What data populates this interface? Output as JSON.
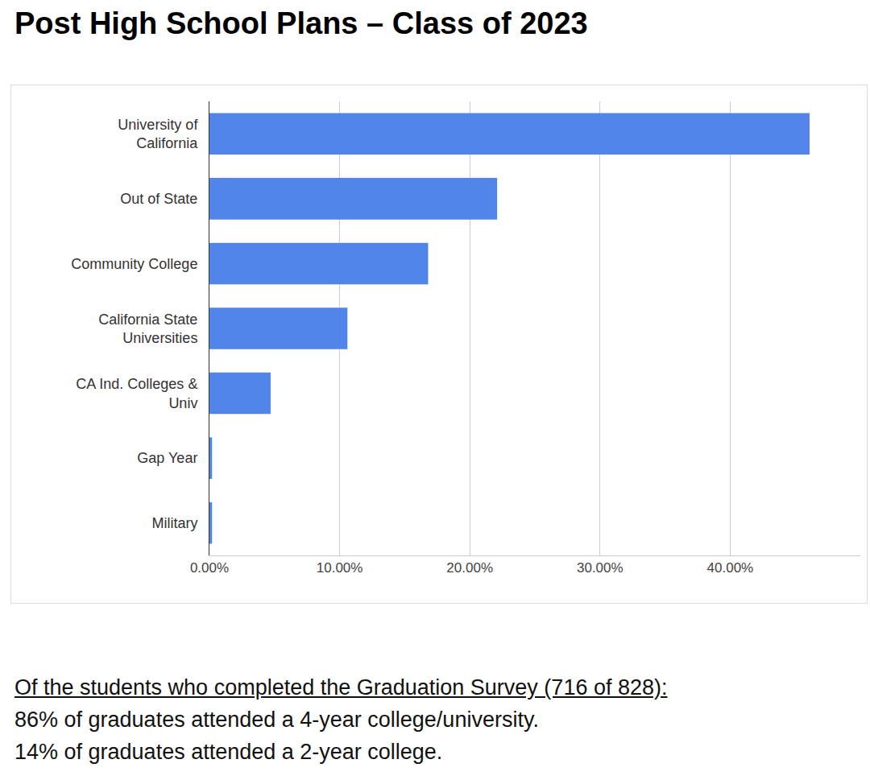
{
  "chart_data": {
    "type": "bar",
    "title": "Post High School Plans – Class of 2023",
    "orientation": "horizontal",
    "categories": [
      "University of California",
      "Out of State",
      "Community College",
      "California State Universities",
      "CA Ind. Colleges & Univ",
      "Gap Year",
      "Military"
    ],
    "values": [
      46.1,
      22.1,
      16.8,
      10.6,
      4.7,
      0.2,
      0.2
    ],
    "color": "#5285ea",
    "xlim": [
      0,
      50
    ],
    "xticks": [
      {
        "value": 0,
        "label": "0.00%"
      },
      {
        "value": 10,
        "label": "10.00%"
      },
      {
        "value": 20,
        "label": "20.00%"
      },
      {
        "value": 30,
        "label": "30.00%"
      },
      {
        "value": 40,
        "label": "40.00%"
      }
    ],
    "grid": true
  },
  "footer": {
    "heading": "Of the students who completed the Graduation Survey (716 of 828):",
    "lines": [
      "86% of graduates attended a 4-year college/university.",
      "14% of graduates attended a 2-year college."
    ]
  }
}
